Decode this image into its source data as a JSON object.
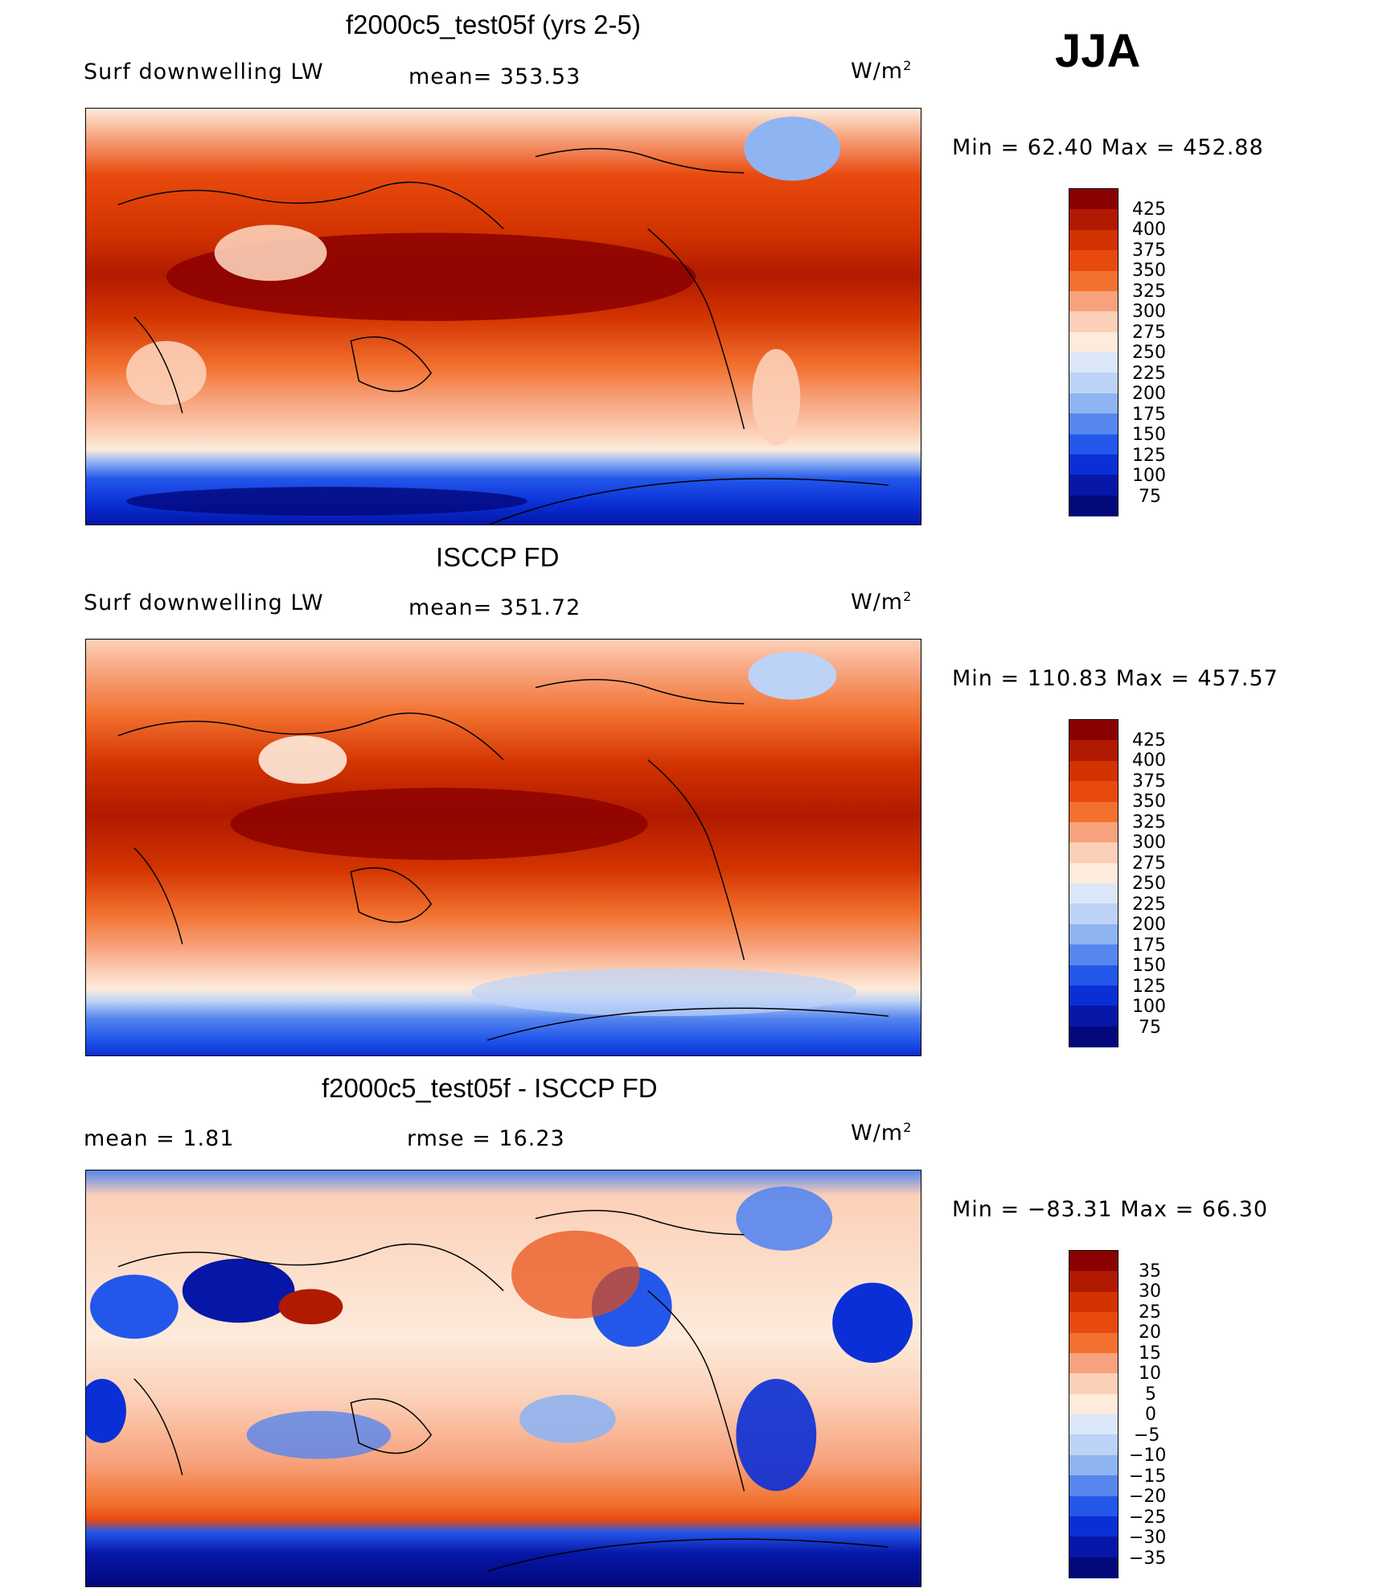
{
  "season": "JJA",
  "panels": [
    {
      "title": "f2000c5_test05f (yrs 2-5)",
      "left_label": "Surf  downwelling  LW",
      "center_label": "mean=  353.53",
      "units": "W/m",
      "units_exp": "2",
      "minmax": "Min  =    62.40  Max  =  452.88",
      "colorbar_labels": [
        "425",
        "400",
        "375",
        "350",
        "325",
        "300",
        "275",
        "250",
        "225",
        "200",
        "175",
        "150",
        "125",
        "100",
        "75"
      ],
      "colorbar_colors": [
        "#8b0000",
        "#b01a00",
        "#d23300",
        "#e84a0e",
        "#f2712f",
        "#f7a27c",
        "#fcd0b8",
        "#fdebdb",
        "#dbe7f8",
        "#bdd3f6",
        "#8fb4f2",
        "#5686ee",
        "#2357ea",
        "#0a2fd6",
        "#0617a8",
        "#03087a"
      ],
      "palette": {
        "warm_dark": "#8b0000",
        "warm": "#d23300",
        "warm_mid": "#f2712f",
        "warm_light": "#fcd0b8",
        "cool": "#2357ea",
        "cool_dark": "#03087a"
      }
    },
    {
      "title": "ISCCP FD",
      "left_label": "Surf  downwelling  LW",
      "center_label": "mean=  351.72",
      "units": "W/m",
      "units_exp": "2",
      "minmax": "Min  =  110.83  Max  =  457.57",
      "colorbar_labels": [
        "425",
        "400",
        "375",
        "350",
        "325",
        "300",
        "275",
        "250",
        "225",
        "200",
        "175",
        "150",
        "125",
        "100",
        "75"
      ],
      "colorbar_colors": [
        "#8b0000",
        "#b01a00",
        "#d23300",
        "#e84a0e",
        "#f2712f",
        "#f7a27c",
        "#fcd0b8",
        "#fdebdb",
        "#dbe7f8",
        "#bdd3f6",
        "#8fb4f2",
        "#5686ee",
        "#2357ea",
        "#0a2fd6",
        "#0617a8",
        "#03087a"
      ]
    },
    {
      "title": "f2000c5_test05f - ISCCP FD",
      "left_label": "mean  =      1.81",
      "center_label": "rmse  =     16.23",
      "units": "W/m",
      "units_exp": "2",
      "minmax": "Min  =  −83.31  Max  =    66.30",
      "colorbar_labels": [
        "35",
        "30",
        "25",
        "20",
        "15",
        "10",
        "5",
        "0",
        "−5",
        "−10",
        "−15",
        "−20",
        "−25",
        "−30",
        "−35"
      ],
      "colorbar_colors": [
        "#8b0000",
        "#b01a00",
        "#d23300",
        "#e84a0e",
        "#f2712f",
        "#f7a27c",
        "#fcd0b8",
        "#fdebdb",
        "#dbe7f8",
        "#bdd3f6",
        "#8fb4f2",
        "#5686ee",
        "#2357ea",
        "#0a2fd6",
        "#0617a8",
        "#03087a"
      ]
    }
  ]
}
